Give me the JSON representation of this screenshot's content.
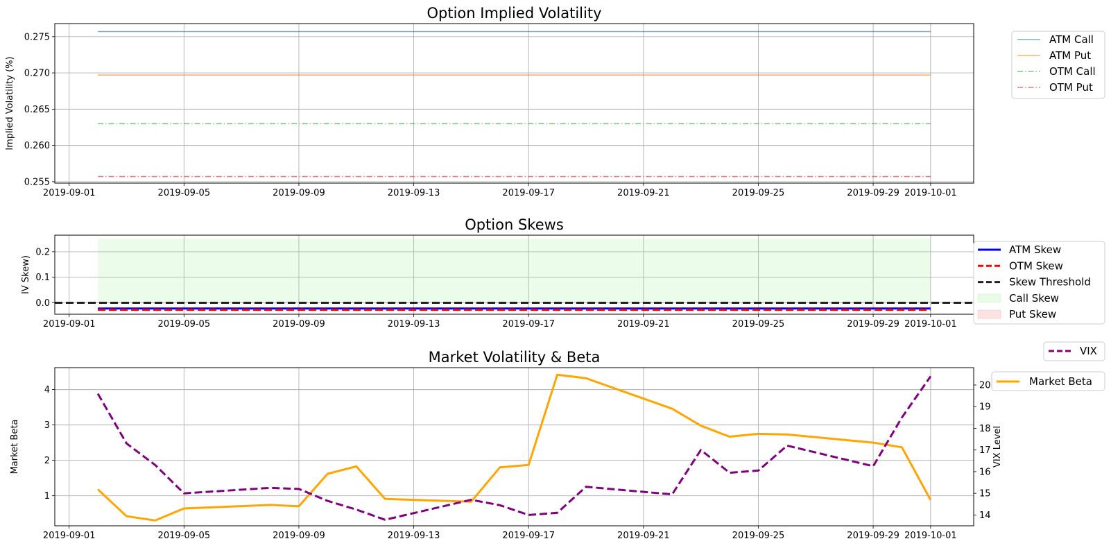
{
  "chart_data": [
    {
      "type": "line",
      "title": "Option Implied Volatility",
      "xlabel": "",
      "ylabel": "Implied Volatility (%)",
      "xlim": [
        "2019-08-31T12:00",
        "2019-10-02T12:00"
      ],
      "ylim": [
        0.2548,
        0.2768
      ],
      "yticks": [
        0.255,
        0.26,
        0.265,
        0.27,
        0.275
      ],
      "ytick_labels": [
        "0.255",
        "0.260",
        "0.265",
        "0.270",
        "0.275"
      ],
      "xticks": [
        "2019-09-01",
        "2019-09-05",
        "2019-09-09",
        "2019-09-13",
        "2019-09-17",
        "2019-09-21",
        "2019-09-25",
        "2019-09-29",
        "2019-10-01"
      ],
      "grid": true,
      "legend_position": "outside-top-right",
      "series": [
        {
          "name": "ATM Call",
          "color": "#1f77b4",
          "style": "solid",
          "alpha": 0.6,
          "x": [
            "2019-09-02",
            "2019-10-01"
          ],
          "values": [
            0.2757,
            0.2757
          ]
        },
        {
          "name": "ATM Put",
          "color": "#ff7f0e",
          "style": "solid",
          "alpha": 0.6,
          "x": [
            "2019-09-02",
            "2019-10-01"
          ],
          "values": [
            0.2697,
            0.2697
          ]
        },
        {
          "name": "OTM Call",
          "color": "#2ca02c",
          "style": "dashdot",
          "alpha": 0.6,
          "x": [
            "2019-09-02",
            "2019-10-01"
          ],
          "values": [
            0.263,
            0.263
          ]
        },
        {
          "name": "OTM Put",
          "color": "#d62728",
          "style": "dashdot",
          "alpha": 0.6,
          "x": [
            "2019-09-02",
            "2019-10-01"
          ],
          "values": [
            0.2557,
            0.2557
          ]
        }
      ]
    },
    {
      "type": "line",
      "title": "Option Skews",
      "xlabel": "",
      "ylabel": "IV Skew)",
      "xlim": [
        "2019-08-31T12:00",
        "2019-10-02T12:00"
      ],
      "ylim": [
        -0.045,
        0.265
      ],
      "yticks": [
        0.0,
        0.1,
        0.2
      ],
      "ytick_labels": [
        "0.0",
        "0.1",
        "0.2"
      ],
      "xticks": [
        "2019-09-01",
        "2019-09-05",
        "2019-09-09",
        "2019-09-13",
        "2019-09-17",
        "2019-09-21",
        "2019-09-25",
        "2019-09-29",
        "2019-10-01"
      ],
      "grid": true,
      "legend_position": "outside-right",
      "series": [
        {
          "name": "ATM Skew",
          "color": "#0000ff",
          "style": "solid",
          "x": [
            "2019-09-02",
            "2019-10-01"
          ],
          "values": [
            -0.0225,
            -0.0225
          ]
        },
        {
          "name": "OTM Skew",
          "color": "#ff0000",
          "style": "dashed",
          "x": [
            "2019-09-02",
            "2019-10-01"
          ],
          "values": [
            -0.0275,
            -0.0275
          ]
        },
        {
          "name": "Skew Threshold",
          "color": "#222222",
          "style": "dashed",
          "values": [
            0.0
          ]
        }
      ],
      "fills": [
        {
          "name": "Call Skew",
          "color": "#90ee90",
          "alpha": 0.18,
          "x": [
            "2019-09-02",
            "2019-10-01"
          ],
          "from": 0.0,
          "to": 0.25
        },
        {
          "name": "Put Skew",
          "color": "#f08080",
          "alpha": 0.18
        }
      ]
    },
    {
      "type": "line",
      "title": "Market Volatility & Beta",
      "xlabel": "",
      "ylabel": "Market Beta",
      "y2label": "VIX Level",
      "xlim": [
        "2019-08-31T12:00",
        "2019-10-02T12:00"
      ],
      "ylim": [
        0.15,
        4.62
      ],
      "y2lim": [
        13.5,
        20.8
      ],
      "yticks": [
        1,
        2,
        3,
        4
      ],
      "ytick_labels": [
        "1",
        "2",
        "3",
        "4"
      ],
      "y2ticks": [
        14,
        15,
        16,
        17,
        18,
        19,
        20
      ],
      "y2tick_labels": [
        "14",
        "15",
        "16",
        "17",
        "18",
        "19",
        "20"
      ],
      "xticks": [
        "2019-09-01",
        "2019-09-05",
        "2019-09-09",
        "2019-09-13",
        "2019-09-17",
        "2019-09-21",
        "2019-09-25",
        "2019-09-29",
        "2019-10-01"
      ],
      "grid": true,
      "legend_position": "outside-right",
      "series": [
        {
          "name": "Market Beta",
          "axis": "left",
          "color": "#ffa500",
          "style": "solid",
          "x": [
            "2019-09-02",
            "2019-09-03",
            "2019-09-04",
            "2019-09-05",
            "2019-09-08",
            "2019-09-09",
            "2019-09-10",
            "2019-09-11",
            "2019-09-12",
            "2019-09-15",
            "2019-09-16",
            "2019-09-17",
            "2019-09-18",
            "2019-09-19",
            "2019-09-22",
            "2019-09-23",
            "2019-09-24",
            "2019-09-25",
            "2019-09-26",
            "2019-09-29",
            "2019-09-30",
            "2019-10-01"
          ],
          "values": [
            1.18,
            0.42,
            0.3,
            0.64,
            0.74,
            0.7,
            1.62,
            1.83,
            0.91,
            0.83,
            1.8,
            1.87,
            4.42,
            4.32,
            3.46,
            2.98,
            2.67,
            2.75,
            2.73,
            2.5,
            2.37,
            0.88
          ]
        },
        {
          "name": "VIX",
          "axis": "right",
          "color": "#800080",
          "style": "dashed",
          "x": [
            "2019-09-02",
            "2019-09-03",
            "2019-09-04",
            "2019-09-05",
            "2019-09-08",
            "2019-09-09",
            "2019-09-10",
            "2019-09-11",
            "2019-09-12",
            "2019-09-15",
            "2019-09-16",
            "2019-09-17",
            "2019-09-18",
            "2019-09-19",
            "2019-09-22",
            "2019-09-23",
            "2019-09-24",
            "2019-09-25",
            "2019-09-26",
            "2019-09-29",
            "2019-09-30",
            "2019-10-01"
          ],
          "values": [
            19.6,
            17.3,
            16.3,
            15.0,
            15.25,
            15.2,
            14.65,
            14.25,
            13.78,
            14.7,
            14.45,
            14.0,
            14.1,
            15.3,
            14.95,
            17.0,
            15.95,
            16.05,
            17.2,
            16.25,
            18.5,
            20.4
          ]
        }
      ]
    }
  ]
}
